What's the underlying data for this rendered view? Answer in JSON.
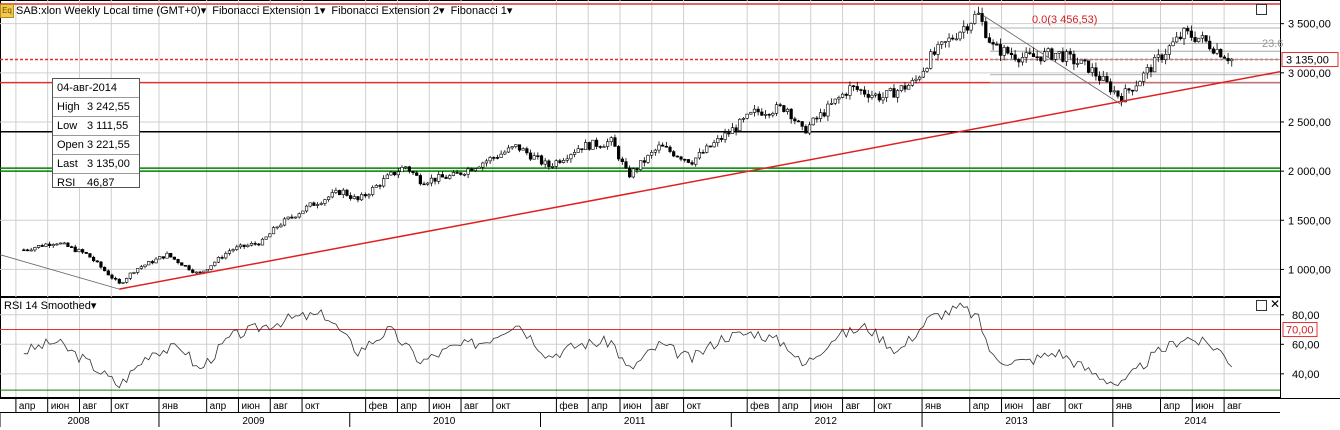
{
  "header": {
    "icon_label": "Eq",
    "symbol": "SAB:xlon Weekly Local time (GMT+0)",
    "menus": [
      "Fibonacci Extension 1",
      "Fibonacci Extension 2",
      "Fibonacci 1"
    ]
  },
  "info_box": {
    "date": "04-авг-2014",
    "rows": [
      {
        "k": "High",
        "v": "3 242,55"
      },
      {
        "k": "Low",
        "v": "3 111,55"
      },
      {
        "k": "Open",
        "v": "3 221,55"
      },
      {
        "k": "Last",
        "v": "3 135,00"
      },
      {
        "k": "RSI",
        "v": "46,87"
      }
    ]
  },
  "fib_labels": {
    "top": "0.0(3 456,53)",
    "level": "23.6"
  },
  "rsi_title": "RSI 14 Smoothed",
  "colors": {
    "trend": "#e02020",
    "hline_red": "#e03030",
    "hline_green": "#008000",
    "hline_black": "#000000",
    "grid": "#cfcfcf",
    "candle": "#000000"
  },
  "chart_data": [
    {
      "type": "candlestick",
      "ylim": [
        750,
        3700
      ],
      "y_ticks": [
        "3 500,00",
        "3 000,00",
        "2 500,00",
        "2 000,00",
        "1 500,00",
        "1 000,00"
      ],
      "last_price_label": "3 135,00",
      "close_by_month": [
        {
          "x": "2008-04",
          "y": 1200
        },
        {
          "x": "2008-06",
          "y": 1280
        },
        {
          "x": "2008-08",
          "y": 1150
        },
        {
          "x": "2008-10",
          "y": 850
        },
        {
          "x": "2008-11",
          "y": 1000
        },
        {
          "x": "2009-01",
          "y": 1150
        },
        {
          "x": "2009-03",
          "y": 950
        },
        {
          "x": "2009-05",
          "y": 1200
        },
        {
          "x": "2009-07",
          "y": 1280
        },
        {
          "x": "2009-08",
          "y": 1450
        },
        {
          "x": "2009-10",
          "y": 1650
        },
        {
          "x": "2009-12",
          "y": 1800
        },
        {
          "x": "2010-01",
          "y": 1700
        },
        {
          "x": "2010-03",
          "y": 1950
        },
        {
          "x": "2010-04",
          "y": 2050
        },
        {
          "x": "2010-05",
          "y": 1900
        },
        {
          "x": "2010-07",
          "y": 1950
        },
        {
          "x": "2010-09",
          "y": 2100
        },
        {
          "x": "2010-11",
          "y": 2250
        },
        {
          "x": "2011-01",
          "y": 2050
        },
        {
          "x": "2011-03",
          "y": 2250
        },
        {
          "x": "2011-05",
          "y": 2300
        },
        {
          "x": "2011-06",
          "y": 1950
        },
        {
          "x": "2011-08",
          "y": 2250
        },
        {
          "x": "2011-10",
          "y": 2100
        },
        {
          "x": "2011-12",
          "y": 2350
        },
        {
          "x": "2012-02",
          "y": 2600
        },
        {
          "x": "2012-04",
          "y": 2650
        },
        {
          "x": "2012-05",
          "y": 2400
        },
        {
          "x": "2012-07",
          "y": 2700
        },
        {
          "x": "2012-08",
          "y": 2850
        },
        {
          "x": "2012-10",
          "y": 2750
        },
        {
          "x": "2012-12",
          "y": 2900
        },
        {
          "x": "2013-01",
          "y": 3150
        },
        {
          "x": "2013-03",
          "y": 3450
        },
        {
          "x": "2013-04",
          "y": 3600
        },
        {
          "x": "2013-05",
          "y": 3250
        },
        {
          "x": "2013-07",
          "y": 3150
        },
        {
          "x": "2013-09",
          "y": 3200
        },
        {
          "x": "2013-11",
          "y": 3050
        },
        {
          "x": "2014-01",
          "y": 2750
        },
        {
          "x": "2014-02",
          "y": 2900
        },
        {
          "x": "2014-04",
          "y": 3250
        },
        {
          "x": "2014-05",
          "y": 3400
        },
        {
          "x": "2014-06",
          "y": 3350
        },
        {
          "x": "2014-08",
          "y": 3135
        }
      ],
      "horizontal_lines": [
        {
          "y": 3700,
          "color": "red"
        },
        {
          "y": 3135,
          "color": "red",
          "style": "dashed"
        },
        {
          "y": 2900,
          "color": "red"
        },
        {
          "y": 2400,
          "color": "black"
        },
        {
          "y": 2030,
          "color": "green"
        },
        {
          "y": 2000,
          "color": "green"
        }
      ],
      "trendline": [
        {
          "x": "2008-10",
          "y": 800
        },
        {
          "x": "2014-08",
          "y": 2920
        }
      ]
    },
    {
      "type": "line",
      "name": "RSI 14 Smoothed",
      "ylim": [
        25,
        90
      ],
      "y_ticks": [
        "80,00",
        "60,00",
        "40,00"
      ],
      "level_labels": [
        "70,00"
      ],
      "values_by_month": [
        {
          "x": "2008-04",
          "y": 55
        },
        {
          "x": "2008-06",
          "y": 62
        },
        {
          "x": "2008-08",
          "y": 48
        },
        {
          "x": "2008-10",
          "y": 32
        },
        {
          "x": "2008-12",
          "y": 55
        },
        {
          "x": "2009-02",
          "y": 58
        },
        {
          "x": "2009-03",
          "y": 42
        },
        {
          "x": "2009-05",
          "y": 65
        },
        {
          "x": "2009-07",
          "y": 72
        },
        {
          "x": "2009-09",
          "y": 78
        },
        {
          "x": "2009-11",
          "y": 80
        },
        {
          "x": "2010-01",
          "y": 55
        },
        {
          "x": "2010-03",
          "y": 70
        },
        {
          "x": "2010-05",
          "y": 48
        },
        {
          "x": "2010-07",
          "y": 58
        },
        {
          "x": "2010-09",
          "y": 62
        },
        {
          "x": "2010-11",
          "y": 75
        },
        {
          "x": "2011-01",
          "y": 52
        },
        {
          "x": "2011-03",
          "y": 60
        },
        {
          "x": "2011-05",
          "y": 62
        },
        {
          "x": "2011-06",
          "y": 42
        },
        {
          "x": "2011-08",
          "y": 60
        },
        {
          "x": "2011-10",
          "y": 50
        },
        {
          "x": "2011-12",
          "y": 65
        },
        {
          "x": "2012-02",
          "y": 68
        },
        {
          "x": "2012-04",
          "y": 60
        },
        {
          "x": "2012-05",
          "y": 45
        },
        {
          "x": "2012-07",
          "y": 65
        },
        {
          "x": "2012-09",
          "y": 72
        },
        {
          "x": "2012-11",
          "y": 55
        },
        {
          "x": "2013-01",
          "y": 78
        },
        {
          "x": "2013-03",
          "y": 85
        },
        {
          "x": "2013-04",
          "y": 78
        },
        {
          "x": "2013-05",
          "y": 50
        },
        {
          "x": "2013-07",
          "y": 48
        },
        {
          "x": "2013-09",
          "y": 55
        },
        {
          "x": "2013-11",
          "y": 42
        },
        {
          "x": "2014-01",
          "y": 32
        },
        {
          "x": "2014-03",
          "y": 52
        },
        {
          "x": "2014-05",
          "y": 65
        },
        {
          "x": "2014-07",
          "y": 58
        },
        {
          "x": "2014-08",
          "y": 47
        }
      ]
    }
  ],
  "x_axis": {
    "months": [
      {
        "label": "апр",
        "x": "2008-04"
      },
      {
        "label": "июн",
        "x": "2008-06"
      },
      {
        "label": "авг",
        "x": "2008-08"
      },
      {
        "label": "окт",
        "x": "2008-10"
      },
      {
        "label": "янв",
        "x": "2009-01"
      },
      {
        "label": "апр",
        "x": "2009-04"
      },
      {
        "label": "июн",
        "x": "2009-06"
      },
      {
        "label": "авг",
        "x": "2009-08"
      },
      {
        "label": "окт",
        "x": "2009-10"
      },
      {
        "label": "фев",
        "x": "2010-02"
      },
      {
        "label": "апр",
        "x": "2010-04"
      },
      {
        "label": "июн",
        "x": "2010-06"
      },
      {
        "label": "авг",
        "x": "2010-08"
      },
      {
        "label": "окт",
        "x": "2010-10"
      },
      {
        "label": "фев",
        "x": "2011-02"
      },
      {
        "label": "апр",
        "x": "2011-04"
      },
      {
        "label": "июн",
        "x": "2011-06"
      },
      {
        "label": "авг",
        "x": "2011-08"
      },
      {
        "label": "окт",
        "x": "2011-10"
      },
      {
        "label": "фев",
        "x": "2012-02"
      },
      {
        "label": "апр",
        "x": "2012-04"
      },
      {
        "label": "июн",
        "x": "2012-06"
      },
      {
        "label": "авг",
        "x": "2012-08"
      },
      {
        "label": "окт",
        "x": "2012-10"
      },
      {
        "label": "янв",
        "x": "2013-01"
      },
      {
        "label": "апр",
        "x": "2013-04"
      },
      {
        "label": "июн",
        "x": "2013-06"
      },
      {
        "label": "авг",
        "x": "2013-08"
      },
      {
        "label": "окт",
        "x": "2013-10"
      },
      {
        "label": "янв",
        "x": "2014-01"
      },
      {
        "label": "апр",
        "x": "2014-04"
      },
      {
        "label": "июн",
        "x": "2014-06"
      },
      {
        "label": "авг",
        "x": "2014-08"
      }
    ],
    "years": [
      "2008",
      "2009",
      "2010",
      "2011",
      "2012",
      "2013",
      "2014"
    ]
  }
}
